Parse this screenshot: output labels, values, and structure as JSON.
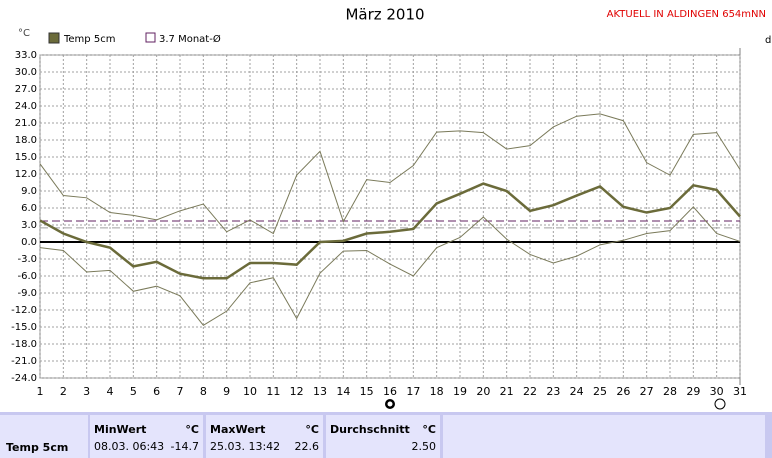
{
  "chart_data": {
    "type": "line",
    "title": "März 2010",
    "station": "AKTUELL IN ALDINGEN 654mNN",
    "unit": "°C",
    "right_label": "d",
    "categories": [
      1,
      2,
      3,
      4,
      5,
      6,
      7,
      8,
      9,
      10,
      11,
      12,
      13,
      14,
      15,
      16,
      17,
      18,
      19,
      20,
      21,
      22,
      23,
      24,
      25,
      26,
      27,
      28,
      29,
      30,
      31
    ],
    "series": [
      {
        "name": "Temp 5cm",
        "color": "#6b6b3a",
        "width": 2.5,
        "values": [
          3.8,
          1.5,
          0.0,
          -1.0,
          -4.3,
          -3.5,
          -5.6,
          -6.4,
          -6.4,
          -3.7,
          -3.7,
          -4.0,
          0.0,
          0.2,
          1.5,
          1.8,
          2.3,
          6.8,
          8.5,
          10.3,
          9.0,
          5.5,
          6.5,
          8.2,
          9.8,
          6.2,
          5.2,
          6.0,
          10.0,
          9.2,
          4.5
        ]
      },
      {
        "color": "#7a7a5a",
        "width": 1,
        "values": [
          13.8,
          8.2,
          7.8,
          5.2,
          4.7,
          3.9,
          5.5,
          6.7,
          1.8,
          3.9,
          1.5,
          11.8,
          16.0,
          3.6,
          11.0,
          10.5,
          13.5,
          19.4,
          19.6,
          19.3,
          16.4,
          17.0,
          20.3,
          22.2,
          22.6,
          21.4,
          14.0,
          11.8,
          19.0,
          19.3,
          12.8
        ]
      },
      {
        "color": "#7a7a5a",
        "width": 1,
        "values": [
          -1.0,
          -1.5,
          -5.3,
          -5.0,
          -8.7,
          -7.8,
          -9.5,
          -14.7,
          -12.2,
          -7.2,
          -6.3,
          -13.5,
          -5.5,
          -1.6,
          -1.5,
          -3.9,
          -6.0,
          -1.0,
          0.8,
          4.4,
          0.5,
          -2.2,
          -3.7,
          -2.5,
          -0.5,
          0.3,
          1.5,
          2.0,
          6.2,
          1.5,
          0.1
        ]
      }
    ],
    "monthly_avg": {
      "label": "3.7 Monat-Ø",
      "value": 3.7,
      "color": "#602060"
    },
    "mean_line": {
      "value": 2.5,
      "color": "#a0a0a0"
    },
    "ylim": [
      -24,
      33
    ],
    "yticks": [
      {
        "value": -24,
        "label": "-24.0"
      },
      {
        "value": -21,
        "label": "-21.0"
      },
      {
        "value": -18,
        "label": "-18.0"
      },
      {
        "value": -15,
        "label": "-15.0"
      },
      {
        "value": -12,
        "label": "-12.0"
      },
      {
        "value": -9,
        "label": "-9.0"
      },
      {
        "value": -6,
        "label": "-6.0"
      },
      {
        "value": -3,
        "label": "-3.0"
      },
      {
        "value": 0,
        "label": "0.0"
      },
      {
        "value": 3,
        "label": "3.0"
      },
      {
        "value": 6,
        "label": "6.0"
      },
      {
        "value": 9,
        "label": "9.0"
      },
      {
        "value": 12,
        "label": "12.0"
      },
      {
        "value": 15,
        "label": "15.0"
      },
      {
        "value": 18,
        "label": "18.0"
      },
      {
        "value": 21,
        "label": "21.0"
      },
      {
        "value": 24,
        "label": "24.0"
      },
      {
        "value": 27,
        "label": "27.0"
      },
      {
        "value": 30,
        "label": "30.0"
      },
      {
        "value": 33,
        "label": "33.0"
      }
    ],
    "grid": true
  },
  "table": {
    "row_label": "Temp 5cm",
    "min_header": "MinWert",
    "min_unit": "°C",
    "min_time": "08.03.  06:43",
    "min_value": "-14.7",
    "max_header": "MaxWert",
    "max_unit": "°C",
    "max_time": "25.03.  13:42",
    "max_value": "22.6",
    "avg_header": "Durchschnitt",
    "avg_unit": "°C",
    "avg_value": "2.50"
  }
}
